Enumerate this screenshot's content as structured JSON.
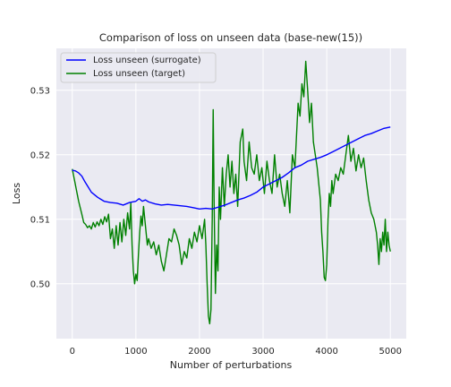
{
  "chart_data": {
    "type": "line",
    "title": "Comparison of loss on unseen data (base-new(15))",
    "xlabel": "Number of perturbations",
    "ylabel": "Loss",
    "xlim": [
      -250,
      5250
    ],
    "ylim": [
      0.4915,
      0.5365
    ],
    "xticks": [
      0,
      1000,
      2000,
      3000,
      4000,
      5000
    ],
    "yticks": [
      0.5,
      0.51,
      0.52,
      0.53
    ],
    "xtick_labels": [
      "0",
      "1000",
      "2000",
      "3000",
      "4000",
      "5000"
    ],
    "ytick_labels": [
      "0.50",
      "0.51",
      "0.52",
      "0.53"
    ],
    "grid": true,
    "legend_position": "upper-left",
    "series": [
      {
        "name": "Loss unseen (surrogate)",
        "color": "#0000ff",
        "points": [
          [
            0,
            0.5176
          ],
          [
            50,
            0.5175
          ],
          [
            100,
            0.5172
          ],
          [
            150,
            0.5167
          ],
          [
            200,
            0.5158
          ],
          [
            250,
            0.515
          ],
          [
            300,
            0.5142
          ],
          [
            350,
            0.5138
          ],
          [
            400,
            0.5134
          ],
          [
            450,
            0.5131
          ],
          [
            500,
            0.5128
          ],
          [
            600,
            0.5126
          ],
          [
            700,
            0.5125
          ],
          [
            800,
            0.5122
          ],
          [
            900,
            0.5126
          ],
          [
            1000,
            0.5128
          ],
          [
            1050,
            0.5132
          ],
          [
            1100,
            0.5128
          ],
          [
            1150,
            0.513
          ],
          [
            1200,
            0.5127
          ],
          [
            1300,
            0.5124
          ],
          [
            1400,
            0.5122
          ],
          [
            1500,
            0.5123
          ],
          [
            1600,
            0.5122
          ],
          [
            1700,
            0.5121
          ],
          [
            1800,
            0.512
          ],
          [
            1900,
            0.5118
          ],
          [
            2000,
            0.5116
          ],
          [
            2100,
            0.5117
          ],
          [
            2200,
            0.5116
          ],
          [
            2300,
            0.5119
          ],
          [
            2400,
            0.5122
          ],
          [
            2500,
            0.5126
          ],
          [
            2600,
            0.513
          ],
          [
            2700,
            0.5133
          ],
          [
            2800,
            0.5137
          ],
          [
            2900,
            0.5142
          ],
          [
            3000,
            0.515
          ],
          [
            3100,
            0.5155
          ],
          [
            3200,
            0.516
          ],
          [
            3300,
            0.5165
          ],
          [
            3400,
            0.5172
          ],
          [
            3500,
            0.518
          ],
          [
            3600,
            0.5184
          ],
          [
            3700,
            0.519
          ],
          [
            3800,
            0.5193
          ],
          [
            3900,
            0.5196
          ],
          [
            4000,
            0.52
          ],
          [
            4100,
            0.5205
          ],
          [
            4200,
            0.521
          ],
          [
            4300,
            0.5215
          ],
          [
            4400,
            0.522
          ],
          [
            4500,
            0.5225
          ],
          [
            4600,
            0.523
          ],
          [
            4700,
            0.5233
          ],
          [
            4800,
            0.5237
          ],
          [
            4900,
            0.5241
          ],
          [
            5000,
            0.5243
          ]
        ]
      },
      {
        "name": "Loss unseen (target)",
        "color": "#008000",
        "points": [
          [
            0,
            0.5178
          ],
          [
            20,
            0.5168
          ],
          [
            40,
            0.5158
          ],
          [
            60,
            0.5148
          ],
          [
            80,
            0.5138
          ],
          [
            100,
            0.5128
          ],
          [
            120,
            0.512
          ],
          [
            150,
            0.5108
          ],
          [
            180,
            0.5095
          ],
          [
            210,
            0.5092
          ],
          [
            240,
            0.5087
          ],
          [
            270,
            0.509
          ],
          [
            300,
            0.5085
          ],
          [
            330,
            0.5095
          ],
          [
            360,
            0.5088
          ],
          [
            390,
            0.5096
          ],
          [
            420,
            0.509
          ],
          [
            450,
            0.51
          ],
          [
            480,
            0.5092
          ],
          [
            510,
            0.5104
          ],
          [
            540,
            0.5096
          ],
          [
            570,
            0.5108
          ],
          [
            600,
            0.507
          ],
          [
            630,
            0.5085
          ],
          [
            660,
            0.5055
          ],
          [
            690,
            0.509
          ],
          [
            720,
            0.506
          ],
          [
            750,
            0.5095
          ],
          [
            780,
            0.5065
          ],
          [
            810,
            0.51
          ],
          [
            840,
            0.5075
          ],
          [
            870,
            0.511
          ],
          [
            900,
            0.5085
          ],
          [
            920,
            0.5125
          ],
          [
            940,
            0.506
          ],
          [
            960,
            0.502
          ],
          [
            980,
            0.5
          ],
          [
            1000,
            0.5015
          ],
          [
            1020,
            0.5005
          ],
          [
            1040,
            0.5045
          ],
          [
            1060,
            0.508
          ],
          [
            1080,
            0.5105
          ],
          [
            1100,
            0.509
          ],
          [
            1120,
            0.512
          ],
          [
            1140,
            0.51
          ],
          [
            1160,
            0.508
          ],
          [
            1180,
            0.506
          ],
          [
            1200,
            0.507
          ],
          [
            1240,
            0.5055
          ],
          [
            1280,
            0.5065
          ],
          [
            1320,
            0.5045
          ],
          [
            1360,
            0.506
          ],
          [
            1400,
            0.5035
          ],
          [
            1440,
            0.502
          ],
          [
            1480,
            0.5045
          ],
          [
            1520,
            0.507
          ],
          [
            1560,
            0.5065
          ],
          [
            1600,
            0.5085
          ],
          [
            1640,
            0.5075
          ],
          [
            1680,
            0.506
          ],
          [
            1720,
            0.503
          ],
          [
            1760,
            0.505
          ],
          [
            1800,
            0.504
          ],
          [
            1840,
            0.507
          ],
          [
            1880,
            0.5055
          ],
          [
            1920,
            0.508
          ],
          [
            1960,
            0.5065
          ],
          [
            2000,
            0.509
          ],
          [
            2040,
            0.507
          ],
          [
            2080,
            0.51
          ],
          [
            2100,
            0.506
          ],
          [
            2120,
            0.5
          ],
          [
            2140,
            0.495
          ],
          [
            2160,
            0.4938
          ],
          [
            2180,
            0.496
          ],
          [
            2200,
            0.51
          ],
          [
            2215,
            0.527
          ],
          [
            2230,
            0.512
          ],
          [
            2250,
            0.4985
          ],
          [
            2270,
            0.506
          ],
          [
            2290,
            0.502
          ],
          [
            2310,
            0.515
          ],
          [
            2330,
            0.51
          ],
          [
            2360,
            0.518
          ],
          [
            2390,
            0.512
          ],
          [
            2420,
            0.517
          ],
          [
            2450,
            0.52
          ],
          [
            2480,
            0.515
          ],
          [
            2510,
            0.519
          ],
          [
            2540,
            0.514
          ],
          [
            2570,
            0.517
          ],
          [
            2600,
            0.512
          ],
          [
            2640,
            0.522
          ],
          [
            2680,
            0.524
          ],
          [
            2700,
            0.519
          ],
          [
            2740,
            0.516
          ],
          [
            2780,
            0.522
          ],
          [
            2820,
            0.518
          ],
          [
            2860,
            0.517
          ],
          [
            2900,
            0.52
          ],
          [
            2940,
            0.516
          ],
          [
            2980,
            0.518
          ],
          [
            3020,
            0.514
          ],
          [
            3060,
            0.519
          ],
          [
            3100,
            0.516
          ],
          [
            3140,
            0.514
          ],
          [
            3180,
            0.52
          ],
          [
            3220,
            0.515
          ],
          [
            3260,
            0.517
          ],
          [
            3300,
            0.514
          ],
          [
            3340,
            0.512
          ],
          [
            3380,
            0.516
          ],
          [
            3420,
            0.511
          ],
          [
            3460,
            0.52
          ],
          [
            3500,
            0.518
          ],
          [
            3520,
            0.522
          ],
          [
            3550,
            0.528
          ],
          [
            3580,
            0.526
          ],
          [
            3610,
            0.531
          ],
          [
            3640,
            0.529
          ],
          [
            3670,
            0.5345
          ],
          [
            3700,
            0.53
          ],
          [
            3730,
            0.525
          ],
          [
            3760,
            0.528
          ],
          [
            3790,
            0.522
          ],
          [
            3820,
            0.52
          ],
          [
            3850,
            0.518
          ],
          [
            3880,
            0.515
          ],
          [
            3900,
            0.513
          ],
          [
            3920,
            0.508
          ],
          [
            3940,
            0.505
          ],
          [
            3960,
            0.501
          ],
          [
            3980,
            0.5005
          ],
          [
            4000,
            0.503
          ],
          [
            4020,
            0.51
          ],
          [
            4040,
            0.514
          ],
          [
            4060,
            0.512
          ],
          [
            4080,
            0.516
          ],
          [
            4100,
            0.514
          ],
          [
            4140,
            0.517
          ],
          [
            4180,
            0.516
          ],
          [
            4220,
            0.518
          ],
          [
            4260,
            0.517
          ],
          [
            4300,
            0.52
          ],
          [
            4340,
            0.523
          ],
          [
            4380,
            0.519
          ],
          [
            4420,
            0.521
          ],
          [
            4460,
            0.5175
          ],
          [
            4500,
            0.52
          ],
          [
            4540,
            0.518
          ],
          [
            4580,
            0.5195
          ],
          [
            4620,
            0.516
          ],
          [
            4660,
            0.513
          ],
          [
            4700,
            0.511
          ],
          [
            4740,
            0.51
          ],
          [
            4780,
            0.508
          ],
          [
            4800,
            0.506
          ],
          [
            4820,
            0.503
          ],
          [
            4840,
            0.507
          ],
          [
            4860,
            0.505
          ],
          [
            4880,
            0.508
          ],
          [
            4900,
            0.506
          ],
          [
            4920,
            0.51
          ],
          [
            4940,
            0.505
          ],
          [
            4960,
            0.508
          ],
          [
            4980,
            0.506
          ],
          [
            5000,
            0.505
          ]
        ]
      }
    ]
  }
}
